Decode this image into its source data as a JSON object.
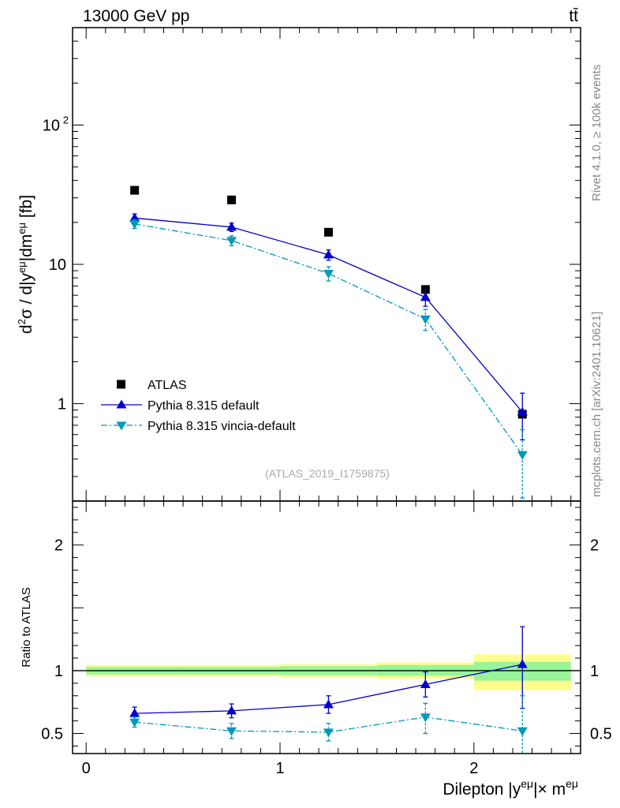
{
  "header": {
    "energy_label": "13000 GeV pp",
    "process_label": "tt̄"
  },
  "side_labels": {
    "rivet": "Rivet 4.1.0, ≥ 100k events",
    "mcplots": "mcplots.cern.ch [arXiv:2401.10621]"
  },
  "analysis_id": "(ATLAS_2019_I1759875)",
  "chart_data": [
    {
      "type": "line",
      "panel": "main",
      "yscale": "log",
      "ylabel": "d²σ / d|yᵉᵘ|dmᵉᵘ [fb]",
      "ylim": [
        0.2,
        500
      ],
      "yticks": [
        {
          "value": 1,
          "label": "1"
        },
        {
          "value": 10,
          "label": "10"
        },
        {
          "value": 100,
          "label": "10²"
        }
      ],
      "xlim": [
        -0.07,
        2.55
      ],
      "legend_position": "bottom-left",
      "x": [
        0.25,
        0.75,
        1.25,
        1.75,
        2.25
      ],
      "series": [
        {
          "name": "ATLAS",
          "style": "data",
          "color": "#000000",
          "values": [
            34,
            29,
            17,
            6.6,
            0.84
          ],
          "yerr": [
            [
              0,
              0
            ],
            [
              0,
              0
            ],
            [
              0,
              0
            ],
            [
              0,
              0
            ],
            [
              0,
              0
            ]
          ]
        },
        {
          "name": "Pythia 8.315 default",
          "style": "solid",
          "marker": "triangle-up",
          "color": "#0000cc",
          "values": [
            21.5,
            18.5,
            11.7,
            5.8,
            0.87
          ],
          "yerr": [
            [
              1.5,
              1.5
            ],
            [
              1.3,
              1.3
            ],
            [
              1.0,
              1.0
            ],
            [
              0.8,
              0.8
            ],
            [
              0.32,
              0.32
            ]
          ]
        },
        {
          "name": "Pythia 8.315 vincia-default",
          "style": "dashdot",
          "marker": "triangle-down",
          "color": "#0099bb",
          "values": [
            19.5,
            14.8,
            8.6,
            4.05,
            0.43
          ],
          "yerr": [
            [
              1.4,
              1.4
            ],
            [
              1.2,
              1.2
            ],
            [
              1.0,
              1.0
            ],
            [
              0.7,
              0.7
            ],
            [
              0.22,
              0.22
            ]
          ]
        }
      ]
    },
    {
      "type": "line",
      "panel": "ratio",
      "ylabel": "Ratio to ATLAS",
      "ylim": [
        0.34,
        2.35
      ],
      "yticks": [
        {
          "value": 0.5,
          "label": "0.5"
        },
        {
          "value": 1,
          "label": "1"
        },
        {
          "value": 2,
          "label": "2"
        }
      ],
      "xlim": [
        -0.07,
        2.55
      ],
      "xticks": [
        {
          "value": 0,
          "label": "0"
        },
        {
          "value": 1,
          "label": "1"
        },
        {
          "value": 2,
          "label": "2"
        }
      ],
      "xlabel": "Dilepton |yᵉᵘ|× mᵉᵘ",
      "bands": [
        {
          "x0": 0,
          "x1": 0.5,
          "inner": [
            0.97,
            1.03
          ],
          "outer": [
            0.955,
            1.045
          ]
        },
        {
          "x0": 0.5,
          "x1": 1.0,
          "inner": [
            0.97,
            1.03
          ],
          "outer": [
            0.955,
            1.045
          ]
        },
        {
          "x0": 1.0,
          "x1": 1.5,
          "inner": [
            0.965,
            1.035
          ],
          "outer": [
            0.95,
            1.05
          ]
        },
        {
          "x0": 1.5,
          "x1": 2.0,
          "inner": [
            0.96,
            1.045
          ],
          "outer": [
            0.935,
            1.065
          ]
        },
        {
          "x0": 2.0,
          "x1": 2.5,
          "inner": [
            0.92,
            1.07
          ],
          "outer": [
            0.845,
            1.13
          ]
        }
      ],
      "x": [
        0.25,
        0.75,
        1.25,
        1.75,
        2.25
      ],
      "series": [
        {
          "name": "Pythia 8.315 default",
          "style": "solid",
          "marker": "triangle-up",
          "color": "#0000cc",
          "values": [
            0.66,
            0.68,
            0.73,
            0.89,
            1.05
          ],
          "yerr": [
            [
              0.05,
              0.05
            ],
            [
              0.055,
              0.055
            ],
            [
              0.07,
              0.07
            ],
            [
              0.1,
              0.1
            ],
            [
              0.35,
              0.3
            ]
          ]
        },
        {
          "name": "Pythia 8.315 vincia-default",
          "style": "dashdot",
          "marker": "triangle-down",
          "color": "#0099bb",
          "values": [
            0.59,
            0.52,
            0.51,
            0.63,
            0.52
          ],
          "yerr": [
            [
              0.04,
              0.04
            ],
            [
              0.06,
              0.06
            ],
            [
              0.07,
              0.07
            ],
            [
              0.13,
              0.11
            ],
            [
              0.3,
              0.28
            ]
          ]
        }
      ]
    }
  ]
}
